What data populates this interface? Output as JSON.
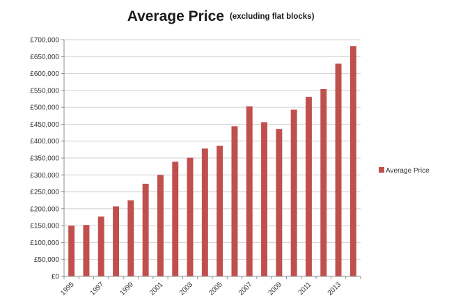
{
  "chart_data": {
    "type": "bar",
    "title": "Average Price",
    "subtitle": "(excluding flat blocks)",
    "categories": [
      "1995",
      "1996",
      "1997",
      "1998",
      "1999",
      "2000",
      "2001",
      "2002",
      "2003",
      "2004",
      "2005",
      "2006",
      "2007",
      "2008",
      "2009",
      "2010",
      "2011",
      "2012",
      "2013",
      "2014"
    ],
    "x_tick_labels": [
      "1995",
      "1997",
      "1999",
      "2001",
      "2003",
      "2005",
      "2007",
      "2009",
      "2011",
      "2013"
    ],
    "series": [
      {
        "name": "Average Price",
        "color": "#c0504d",
        "values": [
          150000,
          152000,
          177000,
          207000,
          225000,
          274000,
          300000,
          339000,
          351000,
          378000,
          386000,
          444000,
          503000,
          456000,
          436000,
          493000,
          531000,
          554000,
          629000,
          681000
        ]
      }
    ],
    "ylim": [
      0,
      700000
    ],
    "y_ticks": [
      "£0",
      "£50,000",
      "£100,000",
      "£150,000",
      "£200,000",
      "£250,000",
      "£300,000",
      "£350,000",
      "£400,000",
      "£450,000",
      "£500,000",
      "£550,000",
      "£600,000",
      "£650,000",
      "£700,000"
    ],
    "grid": true,
    "legend_position": "right"
  }
}
